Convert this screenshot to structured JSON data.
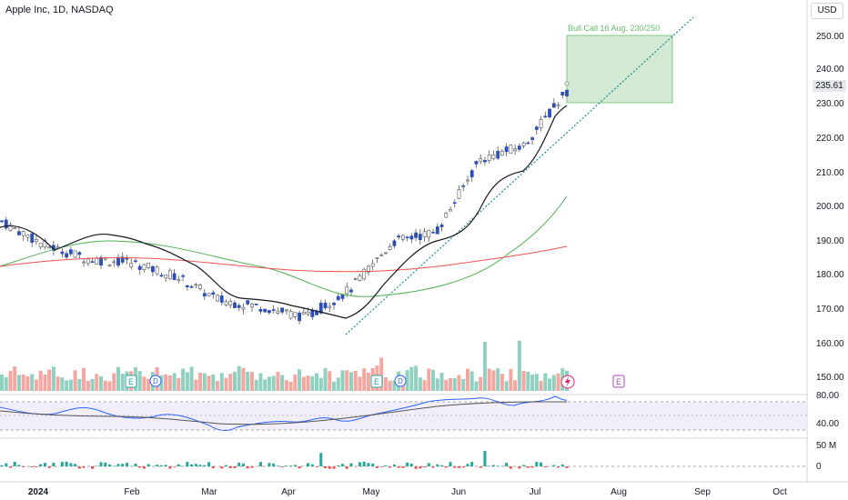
{
  "header": {
    "title": "Apple Inc, 1D, NASDAQ",
    "currency": "USD"
  },
  "price_axis": {
    "ticks": [
      "250.00",
      "240.00",
      "230.00",
      "220.00",
      "210.00",
      "200.00",
      "190.00",
      "180.00",
      "170.00",
      "160.00",
      "150.00"
    ],
    "last_price": "235.61"
  },
  "rsi_axis": {
    "ticks": [
      "80.00",
      "40.00"
    ]
  },
  "volume_axis": {
    "ticks": [
      "50 M",
      "0"
    ]
  },
  "time_axis": {
    "labels": [
      "2024",
      "Feb",
      "Mar",
      "Apr",
      "May",
      "Jun",
      "Jul",
      "Aug",
      "Sep",
      "Oct"
    ]
  },
  "annotation": {
    "label": "Bull Call 16 Aug. 230/250"
  },
  "events": {
    "earnings": "E",
    "dividend": "D"
  },
  "colors": {
    "up": "#2a4fb8",
    "down": "#b5b5b5",
    "vol_up": "#8fd0c0",
    "vol_down": "#f4a6a0",
    "ma_short": "#131722",
    "ma_mid": "#4caf50",
    "ma_long": "#ef5350",
    "rsi": "#2962ff",
    "bull_box": "#c8e6c9",
    "trendline": "#1e8a9a"
  },
  "chart_data": {
    "type": "candlestick",
    "symbol": "Apple Inc, 1D, NASDAQ",
    "price_range": [
      147,
      254
    ],
    "series": [
      {
        "name": "",
        "x": [
          "2024-01-02",
          "2024-01-16",
          "2024-02-01",
          "2024-02-15",
          "2024-03-01",
          "2024-03-15",
          "2024-04-01",
          "2024-04-15",
          "2024-05-01",
          "2024-05-15",
          "2024-06-01",
          "2024-06-15",
          "2024-07-01",
          "2024-07-16"
        ],
        "values": [
          196,
          189,
          185,
          184,
          180,
          173,
          171,
          168,
          176,
          190,
          193,
          214,
          218,
          234
        ]
      }
    ],
    "annotations": [
      {
        "type": "rectangle",
        "label": "Bull Call 16 Aug. 230/250",
        "y_range": [
          230,
          250
        ],
        "x_range": [
          "2024-07-16",
          "2024-08-16"
        ]
      }
    ]
  }
}
